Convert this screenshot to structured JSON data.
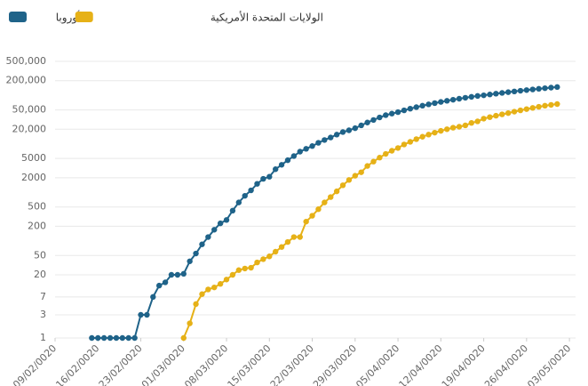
{
  "chart_data": {
    "type": "line",
    "log_y": true,
    "grid": true,
    "legend_position": "top-left",
    "x": [
      "15/02/0020",
      "16/02/0020",
      "17/02/0020",
      "18/02/0020",
      "19/02/0020",
      "20/02/0020",
      "21/02/0020",
      "22/02/0020",
      "23/02/0020",
      "24/02/0020",
      "25/02/0020",
      "26/02/0020",
      "27/02/0020",
      "28/02/0020",
      "29/02/0020",
      "01/03/0020",
      "02/03/0020",
      "03/03/0020",
      "04/03/0020",
      "05/03/0020",
      "06/03/0020",
      "07/03/0020",
      "08/03/0020",
      "09/03/0020",
      "10/03/0020",
      "11/03/0020",
      "12/03/0020",
      "13/03/0020",
      "14/03/0020",
      "15/03/0020",
      "16/03/0020",
      "17/03/0020",
      "18/03/0020",
      "19/03/0020",
      "20/03/0020",
      "21/03/0020",
      "22/03/0020",
      "23/03/0020",
      "24/03/0020",
      "25/03/0020",
      "26/03/0020",
      "27/03/0020",
      "28/03/0020",
      "29/03/0020",
      "30/03/0020",
      "31/03/0020",
      "01/04/0020",
      "02/04/0020",
      "03/04/0020",
      "04/04/0020",
      "05/04/0020",
      "06/04/0020",
      "07/04/0020",
      "08/04/0020",
      "09/04/0020",
      "10/04/0020",
      "11/04/0020",
      "12/04/0020",
      "13/04/0020",
      "14/04/0020",
      "15/04/0020",
      "16/04/0020",
      "17/04/0020",
      "18/04/0020",
      "19/04/0020",
      "20/04/0020",
      "21/04/0020",
      "22/04/0020",
      "23/04/0020",
      "24/04/0020",
      "25/04/0020",
      "26/04/0020",
      "27/04/0020",
      "28/04/0020",
      "29/04/0020",
      "30/04/0020",
      "01/05/0020"
    ],
    "series": [
      {
        "name": "أوروبا",
        "color": "#1f6389",
        "values": [
          1,
          1,
          1,
          1,
          1,
          1,
          1,
          1,
          3,
          3,
          7,
          12,
          14,
          20,
          20,
          21,
          38,
          55,
          85,
          120,
          170,
          230,
          270,
          420,
          620,
          850,
          1100,
          1500,
          1900,
          2100,
          3000,
          3700,
          4600,
          5600,
          6900,
          7900,
          9000,
          10500,
          12000,
          13500,
          15500,
          17500,
          19000,
          21000,
          24000,
          27500,
          31000,
          35000,
          39000,
          42000,
          45000,
          49000,
          53000,
          57000,
          61000,
          65000,
          69000,
          73000,
          77000,
          81000,
          85000,
          89000,
          93000,
          97000,
          100000,
          104000,
          108000,
          112000,
          116000,
          120000,
          124000,
          128000,
          132000,
          136000,
          140000,
          144000,
          148000
        ]
      },
      {
        "name": "الولايات المتحدة الأمريكية",
        "color": "#e6b117",
        "values": [
          null,
          null,
          null,
          null,
          null,
          null,
          null,
          null,
          null,
          null,
          null,
          null,
          null,
          null,
          null,
          1,
          2,
          5,
          8,
          10,
          11,
          13,
          16,
          20,
          25,
          27,
          28,
          36,
          42,
          48,
          60,
          75,
          95,
          120,
          120,
          250,
          330,
          450,
          620,
          800,
          1050,
          1400,
          1800,
          2200,
          2600,
          3500,
          4300,
          5200,
          6200,
          7200,
          8200,
          9700,
          11000,
          12500,
          14000,
          15500,
          17000,
          18500,
          20000,
          21500,
          22500,
          24000,
          27000,
          29000,
          33000,
          35500,
          38000,
          40500,
          43000,
          46000,
          49000,
          52000,
          55000,
          58000,
          61000,
          63500,
          66000
        ]
      }
    ],
    "xlim": [
      "09/02/0020",
      "04/05/0020"
    ],
    "xticks": [
      "09/02/0020",
      "16/02/0020",
      "23/02/0020",
      "01/03/0020",
      "08/03/0020",
      "15/03/0020",
      "22/03/0020",
      "29/03/0020",
      "05/04/0020",
      "12/04/0020",
      "19/04/0020",
      "26/04/0020",
      "03/05/0020"
    ],
    "ylim": [
      1,
      500000
    ],
    "yticks": [
      1,
      3,
      7,
      20,
      50,
      200,
      500,
      2000,
      5000,
      {
        "value": 20000,
        "label": "20,000"
      },
      {
        "value": 50000,
        "label": "50,000"
      },
      {
        "value": 200000,
        "label": "200,000"
      },
      {
        "value": 500000,
        "label": "500,000"
      }
    ]
  }
}
